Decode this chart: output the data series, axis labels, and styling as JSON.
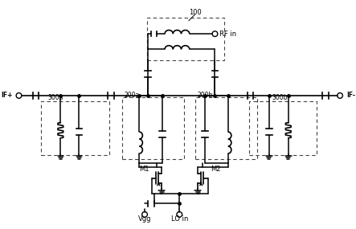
{
  "bg_color": "#ffffff",
  "line_color": "#000000",
  "labels": {
    "RF_in": "RF in",
    "IF_plus": "IF+",
    "IF_minus": "IF-",
    "label_100": "100",
    "label_200a": "200a",
    "label_200b": "200b",
    "label_300a": "300a",
    "label_300b": "300b",
    "M1": "M1",
    "M2": "M2",
    "Vgg": "Vgg",
    "LO_in": "LO in"
  }
}
